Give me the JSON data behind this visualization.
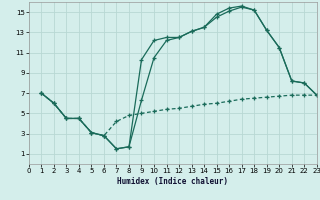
{
  "xlabel": "Humidex (Indice chaleur)",
  "bg_color": "#d4eeeb",
  "grid_color": "#b8d8d4",
  "line_color": "#1a6b5a",
  "line1_x": [
    1,
    2,
    3,
    4,
    5,
    6,
    7,
    8,
    9,
    10,
    11,
    12,
    13,
    14,
    15,
    16,
    17,
    18,
    19,
    20,
    21,
    22,
    23
  ],
  "line1_y": [
    7.0,
    6.0,
    4.5,
    4.5,
    3.1,
    2.8,
    1.5,
    1.7,
    10.3,
    12.2,
    12.5,
    12.5,
    13.1,
    13.5,
    14.8,
    15.4,
    15.6,
    15.2,
    13.2,
    11.5,
    8.2,
    8.0,
    6.8
  ],
  "line2_x": [
    1,
    2,
    3,
    4,
    5,
    6,
    7,
    8,
    9,
    10,
    11,
    12,
    13,
    14,
    15,
    16,
    17,
    18,
    19,
    20,
    21,
    22,
    23
  ],
  "line2_y": [
    7.0,
    6.0,
    4.5,
    4.5,
    3.1,
    2.8,
    1.5,
    1.7,
    6.3,
    10.5,
    12.2,
    12.5,
    13.1,
    13.5,
    14.5,
    15.1,
    15.5,
    15.2,
    13.2,
    11.5,
    8.2,
    8.0,
    6.8
  ],
  "line3_x": [
    1,
    2,
    3,
    4,
    5,
    6,
    7,
    8,
    9,
    10,
    11,
    12,
    13,
    14,
    15,
    16,
    17,
    18,
    19,
    20,
    21,
    22,
    23
  ],
  "line3_y": [
    7.0,
    6.0,
    4.5,
    4.5,
    3.1,
    2.8,
    4.2,
    4.8,
    5.0,
    5.2,
    5.4,
    5.5,
    5.7,
    5.9,
    6.0,
    6.2,
    6.4,
    6.5,
    6.6,
    6.7,
    6.8,
    6.8,
    6.8
  ],
  "xlim": [
    0,
    23
  ],
  "ylim": [
    0,
    16
  ],
  "xticks": [
    0,
    1,
    2,
    3,
    4,
    5,
    6,
    7,
    8,
    9,
    10,
    11,
    12,
    13,
    14,
    15,
    16,
    17,
    18,
    19,
    20,
    21,
    22,
    23
  ],
  "yticks": [
    1,
    3,
    5,
    7,
    9,
    11,
    13,
    15
  ]
}
